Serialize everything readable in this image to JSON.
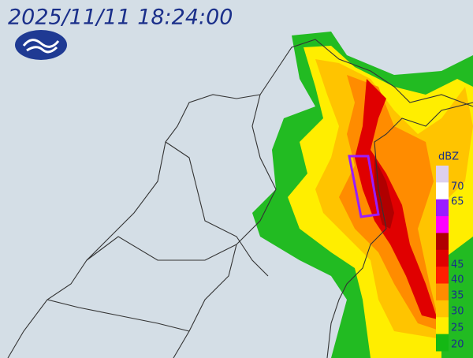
{
  "header": {
    "timestamp": "2025/11/11 18:24:00"
  },
  "legend": {
    "unit": "dBZ",
    "labels": [
      "70",
      "65",
      "45",
      "40",
      "35",
      "30",
      "25",
      "20"
    ],
    "colors": [
      "#ddd0ee",
      "#ffffff",
      "#9a1cff",
      "#ff00ff",
      "#b00000",
      "#e00000",
      "#ff1e00",
      "#ff8c00",
      "#ffc400",
      "#ffee00",
      "#14b814"
    ]
  }
}
